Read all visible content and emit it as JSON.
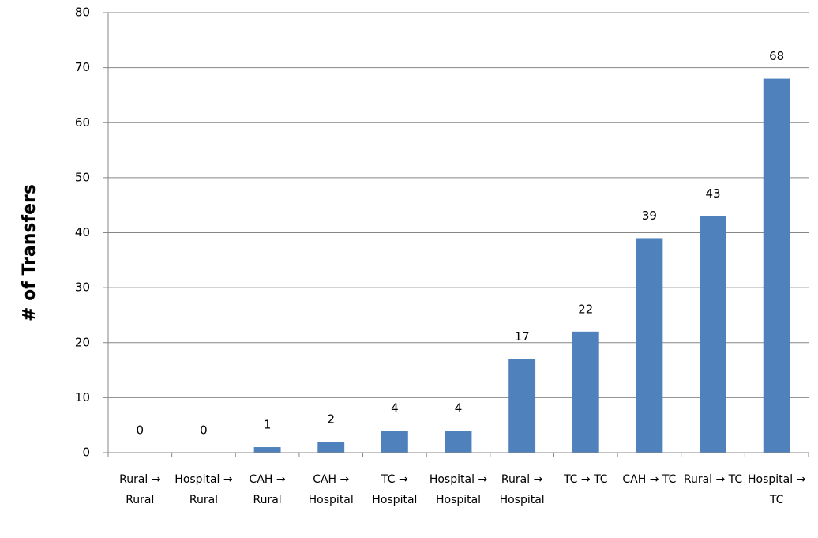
{
  "chart_data": {
    "type": "bar",
    "y_label": "# of Transfers",
    "categories": [
      "Rural → Rural",
      "Hospital → Rural",
      "CAH → Rural",
      "CAH → Hospital",
      "TC → Hospital",
      "Hospital → Hospital",
      "Rural → Hospital",
      "TC → TC",
      "CAH → TC",
      "Rural → TC",
      "Hospital → TC"
    ],
    "values": [
      0,
      0,
      1,
      2,
      4,
      4,
      17,
      22,
      39,
      43,
      68
    ],
    "color": "#4f81bd",
    "ylim": [
      0,
      80
    ],
    "yticks": [
      0,
      10,
      20,
      30,
      40,
      50,
      60,
      70,
      80
    ],
    "grid": true
  }
}
